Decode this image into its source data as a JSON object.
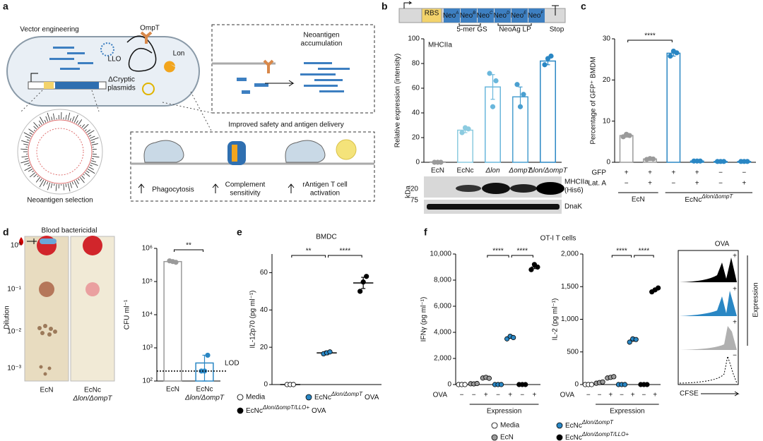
{
  "diagram": {
    "panel": "a",
    "vector": "Vector engineering",
    "ompt": "OmpT",
    "lon": "Lon",
    "llo": "LLO",
    "cryptic": [
      "ΔCryptic",
      "plasmids"
    ],
    "accumulation": [
      "Neoantigen",
      "accumulation"
    ],
    "improved": "Improved safety and antigen delivery",
    "phagocytosis": "Phagocytosis",
    "complement": [
      "Complement",
      "sensitivity"
    ],
    "activation": [
      "rAntigen T cell",
      "activation"
    ],
    "selection": "Neoantigen selection"
  },
  "construct": {
    "rbs": "RBS",
    "neos": [
      {
        "text": "Neo",
        "sup": "A"
      },
      {
        "text": "Neo",
        "sup": "B"
      },
      {
        "text": "Neo",
        "sup": "C"
      },
      {
        "text": "Neo",
        "sup": "D"
      },
      {
        "text": "Neo",
        "sup": "E"
      },
      {
        "text": "Neo",
        "sup": "F"
      }
    ],
    "gs": "5-mer GS",
    "lp": "NeoAg LP",
    "stop": "Stop"
  },
  "blot": {
    "unit": "kDa",
    "markers": [
      "20",
      "75"
    ],
    "bands": [
      [
        "MHCIIa",
        "(His6)"
      ],
      "DnaK"
    ]
  },
  "plate": {
    "title": "Blood bactericidal",
    "axis": "Dilution",
    "dilutions": [
      "10⁰",
      "10⁻¹",
      "10⁻²",
      "10⁻³"
    ],
    "strains": [
      "EcN",
      [
        "EcNc",
        "Δlon/ΔompT"
      ]
    ]
  },
  "flow": {
    "title": "OVA",
    "marks": [
      "+",
      "+",
      "+",
      "−"
    ],
    "group": "Expression",
    "axis": "CFSE"
  },
  "legend_f": [
    {
      "label": "Media",
      "color": "#ffffff"
    },
    {
      "label": {
        "text": "EcNc",
        "sup": "Δlon/ΔompT"
      },
      "color": "#2a87c4"
    },
    {
      "label": "EcN",
      "color": "#9a9a9a"
    },
    {
      "label": {
        "text": "EcNc",
        "sup": "Δlon/ΔompT/LLO+"
      },
      "color": "#000000"
    }
  ],
  "chart_data": [
    {
      "panel": "b",
      "type": "bar",
      "title": "MHCIIa",
      "ylabel": "Relative expression (intensity)",
      "categories": [
        "EcN",
        "EcNc",
        "Δlon",
        "ΔompT",
        "Δlon/ΔompT"
      ],
      "values": [
        0.3,
        26,
        61,
        53,
        82
      ],
      "errors": [
        0.2,
        2,
        10,
        8,
        3
      ],
      "points": [
        [
          0,
          0,
          0
        ],
        [
          24,
          28,
          27
        ],
        [
          72,
          45,
          66
        ],
        [
          63,
          45,
          55
        ],
        [
          79,
          84,
          86
        ]
      ],
      "colors": [
        "#9a9a9a",
        "#8ccbe0",
        "#6ab7dc",
        "#4a9fd0",
        "#2a87c4"
      ],
      "ylim": [
        0,
        100
      ],
      "yticks": [
        0,
        20,
        40,
        60,
        80,
        100
      ]
    },
    {
      "panel": "c",
      "type": "bar",
      "ylabel": "Percentage of GFP⁺ BMDM",
      "values": [
        6.5,
        0.8,
        26.5,
        0.3,
        0.2,
        0.2
      ],
      "errors": [
        0.4,
        0.1,
        0.7,
        0.05,
        0.05,
        0.05
      ],
      "points": [
        [
          6.2,
          6.8,
          6.5
        ],
        [
          0.7,
          0.9,
          0.8
        ],
        [
          25.8,
          27,
          26.6
        ],
        [
          0.3,
          0.3,
          0.3
        ],
        [
          0.2,
          0.2,
          0.2
        ],
        [
          0.2,
          0.2,
          0.2
        ]
      ],
      "colors": [
        "#9a9a9a",
        "#9a9a9a",
        "#2a87c4",
        "#2a87c4",
        "#2a87c4",
        "#2a87c4"
      ],
      "ylim": [
        0,
        30
      ],
      "yticks": [
        0,
        10,
        20,
        30
      ],
      "rows": [
        {
          "name": "GFP",
          "marks": [
            "+",
            "+",
            "+",
            "+",
            "−",
            "−"
          ]
        },
        {
          "name": "Lat. A",
          "marks": [
            "−",
            "+",
            "−",
            "+",
            "−",
            "+"
          ]
        }
      ],
      "groups": [
        "EcN",
        {
          "text": "EcNc",
          "sup": "Δlon/ΔompT"
        }
      ],
      "sig": [
        "****"
      ]
    },
    {
      "panel": "d",
      "type": "bar",
      "log": true,
      "ylabel": "CFU ml⁻¹",
      "categories": [
        "EcN",
        [
          "EcNc",
          "Δlon/ΔompT"
        ]
      ],
      "values": [
        400000,
        350
      ],
      "errors": [
        20000,
        250
      ],
      "points": [
        [
          420000,
          400000,
          380000
        ],
        [
          200,
          200,
          600
        ]
      ],
      "colors": [
        "#9a9a9a",
        "#2a87c4"
      ],
      "ylim": [
        100,
        1000000
      ],
      "yticks": [
        {
          "value": 100,
          "label": "10²"
        },
        {
          "value": 1000,
          "label": "10³"
        },
        {
          "value": 10000,
          "label": "10⁴"
        },
        {
          "value": 100000,
          "label": "10⁵"
        },
        {
          "value": 1000000,
          "label": "10⁶"
        }
      ],
      "lod": {
        "value": 200,
        "label": "LOD"
      },
      "sig": [
        "**"
      ]
    },
    {
      "panel": "e",
      "type": "dot",
      "title": "BMDC",
      "ylabel": "IL-12p70 (pg ml⁻¹)",
      "values": [
        0,
        17,
        54.5
      ],
      "errors": [
        0,
        1,
        3
      ],
      "points": [
        [
          0,
          0,
          0
        ],
        [
          16.5,
          17,
          17.5
        ],
        [
          50,
          55,
          58
        ]
      ],
      "colors": [
        "#ffffff",
        "#2a87c4",
        "#000000"
      ],
      "ylim": [
        0,
        70
      ],
      "yticks": [
        0,
        20,
        40,
        60
      ],
      "sig": [
        "**",
        "****"
      ],
      "legend": [
        {
          "label": "Media",
          "color": "#ffffff"
        },
        {
          "label": {
            "text": "EcNc",
            "sup": "Δlon/ΔompT",
            "suffix": "OVA"
          },
          "color": "#2a87c4"
        },
        {
          "label": {
            "text": "EcNc",
            "sup": "Δlon/ΔompT/LLO+",
            "suffix": "OVA"
          },
          "color": "#000000"
        }
      ]
    },
    {
      "panel": "f",
      "type": "dot",
      "title": "OT-I T cells",
      "ylabel": "IFNγ (pg ml⁻¹)",
      "values": [
        0,
        63,
        510,
        0,
        3600,
        0,
        9000
      ],
      "errors": [
        0,
        10,
        20,
        0,
        60,
        0,
        120
      ],
      "points": [
        [
          0,
          0,
          0
        ],
        [
          60,
          50,
          80
        ],
        [
          500,
          550,
          480
        ],
        [
          0,
          0,
          0
        ],
        [
          3500,
          3700,
          3600
        ],
        [
          0,
          0,
          0
        ],
        [
          8800,
          9200,
          9000
        ]
      ],
      "colors": [
        "#ffffff",
        "#9a9a9a",
        "#9a9a9a",
        "#2a87c4",
        "#2a87c4",
        "#000000",
        "#000000"
      ],
      "ylim": [
        0,
        10000
      ],
      "yticks": [
        0,
        {
          "value": 2000,
          "label": "2,000"
        },
        {
          "value": 4000,
          "label": "4,000"
        },
        {
          "value": 6000,
          "label": "6,000"
        },
        {
          "value": 8000,
          "label": "8,000"
        },
        {
          "value": 10000,
          "label": "10,000"
        }
      ],
      "rows": [
        {
          "name": "OVA",
          "marks": [
            "−",
            "−",
            "+",
            "−",
            "+",
            "−",
            "+"
          ]
        }
      ],
      "groups": [
        "Expression"
      ],
      "sig": [
        "****",
        "****"
      ]
    },
    {
      "type": "dot",
      "ylabel": "IL-2 (pg ml⁻¹)",
      "values": [
        0,
        30,
        110,
        0,
        680,
        0,
        1450
      ],
      "errors": [
        0,
        6,
        6,
        0,
        15,
        0,
        18
      ],
      "points": [
        [
          0,
          0,
          0
        ],
        [
          20,
          30,
          40
        ],
        [
          100,
          110,
          120
        ],
        [
          0,
          0,
          0
        ],
        [
          650,
          700,
          690
        ],
        [
          0,
          0,
          0
        ],
        [
          1420,
          1450,
          1480
        ]
      ],
      "colors": [
        "#ffffff",
        "#9a9a9a",
        "#9a9a9a",
        "#2a87c4",
        "#2a87c4",
        "#000000",
        "#000000"
      ],
      "ylim": [
        0,
        2000
      ],
      "yticks": [
        0,
        500,
        {
          "value": 1000,
          "label": "1,000"
        },
        {
          "value": 1500,
          "label": "1,500"
        },
        {
          "value": 2000,
          "label": "2,000"
        }
      ],
      "rows": [
        {
          "name": "OVA",
          "marks": [
            "−",
            "−",
            "+",
            "−",
            "+",
            "−",
            "+"
          ]
        }
      ],
      "groups": [
        "Expression"
      ],
      "sig": [
        "****",
        "****"
      ]
    }
  ]
}
